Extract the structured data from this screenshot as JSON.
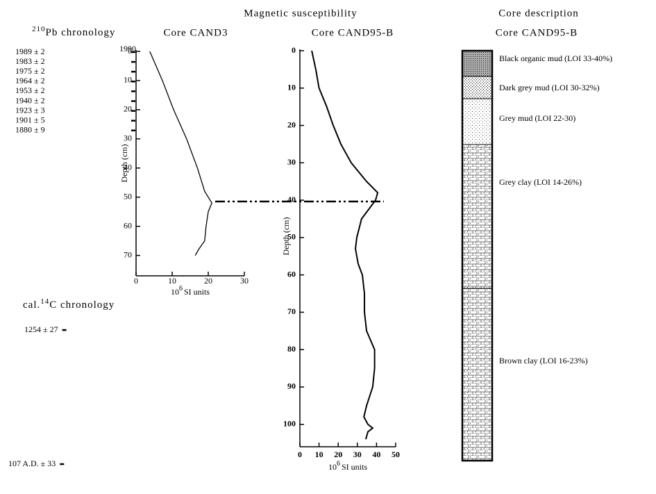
{
  "header": {
    "title_left": "Magnetic susceptibility",
    "title_right": "Core description",
    "core_right": "Core CAND95-B"
  },
  "pb_chronology": {
    "title_sup": "210",
    "title": "Pb chronology",
    "top_label": "1990",
    "dates": [
      "1989 ± 2",
      "1983 ± 2",
      "1975 ± 2",
      "1964 ± 2",
      "1953 ± 2",
      "1940 ± 2",
      "1923 ± 3",
      "1901 ± 5",
      "1880 ± 9"
    ]
  },
  "c14_chronology": {
    "title_pre": "cal.",
    "title_sup": "14",
    "title": "C chronology",
    "dates": [
      "1254 ± 27",
      "107 A.D. ± 33"
    ]
  },
  "core_description": {
    "layers": [
      "Black organic mud (LOI 33-40%)",
      "Dark grey mud (LOI 30-32%)",
      "Grey mud (LOI 22-30)",
      "Grey clay (LOI 14-26%)",
      "Brown clay (LOI 16-23%)"
    ]
  },
  "chart_data": [
    {
      "type": "line",
      "title": "Core CAND3",
      "ylabel": "Depth (cm)",
      "xlabel_base": "10",
      "xlabel_sup": "6",
      "xlabel": "SI units",
      "xlim": [
        0,
        30
      ],
      "xticks": [
        0,
        10,
        20,
        30
      ],
      "ylim": [
        0,
        77
      ],
      "yticks": [
        0,
        10,
        20,
        30,
        40,
        50,
        60,
        70
      ],
      "y_inverted": true,
      "series": [
        {
          "color": "#000000",
          "x": [
            3.8,
            7.3,
            10.4,
            14,
            17,
            19,
            21,
            20,
            19.4,
            19,
            17.3,
            16.4
          ],
          "y": [
            0,
            10,
            20,
            30,
            40,
            48,
            52,
            55,
            60,
            65,
            68,
            70
          ]
        }
      ]
    },
    {
      "type": "line",
      "title": "Core CAND95-B",
      "ylabel": "Depth (cm)",
      "xlabel_base": "10",
      "xlabel_sup": "6",
      "xlabel": "SI units",
      "xlim": [
        0,
        50
      ],
      "xticks": [
        0,
        10,
        20,
        30,
        40,
        50
      ],
      "ylim": [
        0,
        106
      ],
      "yticks": [
        0,
        10,
        20,
        30,
        40,
        50,
        60,
        70,
        80,
        90,
        100
      ],
      "y_inverted": true,
      "series": [
        {
          "color": "#000000",
          "x": [
            6.2,
            8.3,
            10,
            14,
            17.4,
            21.4,
            26.8,
            34.8,
            40.6,
            39.5,
            32.2,
            29.7,
            29,
            30.4,
            32.6,
            33.7,
            33.7,
            34.8,
            39,
            39,
            38,
            34.8,
            33.4,
            35.5,
            38,
            35.5,
            34.4
          ],
          "y": [
            0,
            5,
            10,
            15,
            20,
            25,
            30,
            35,
            38,
            40,
            45,
            50,
            53,
            57,
            60,
            65,
            70,
            75,
            80,
            85,
            90,
            95,
            98,
            100,
            101,
            102,
            104
          ]
        }
      ]
    }
  ]
}
